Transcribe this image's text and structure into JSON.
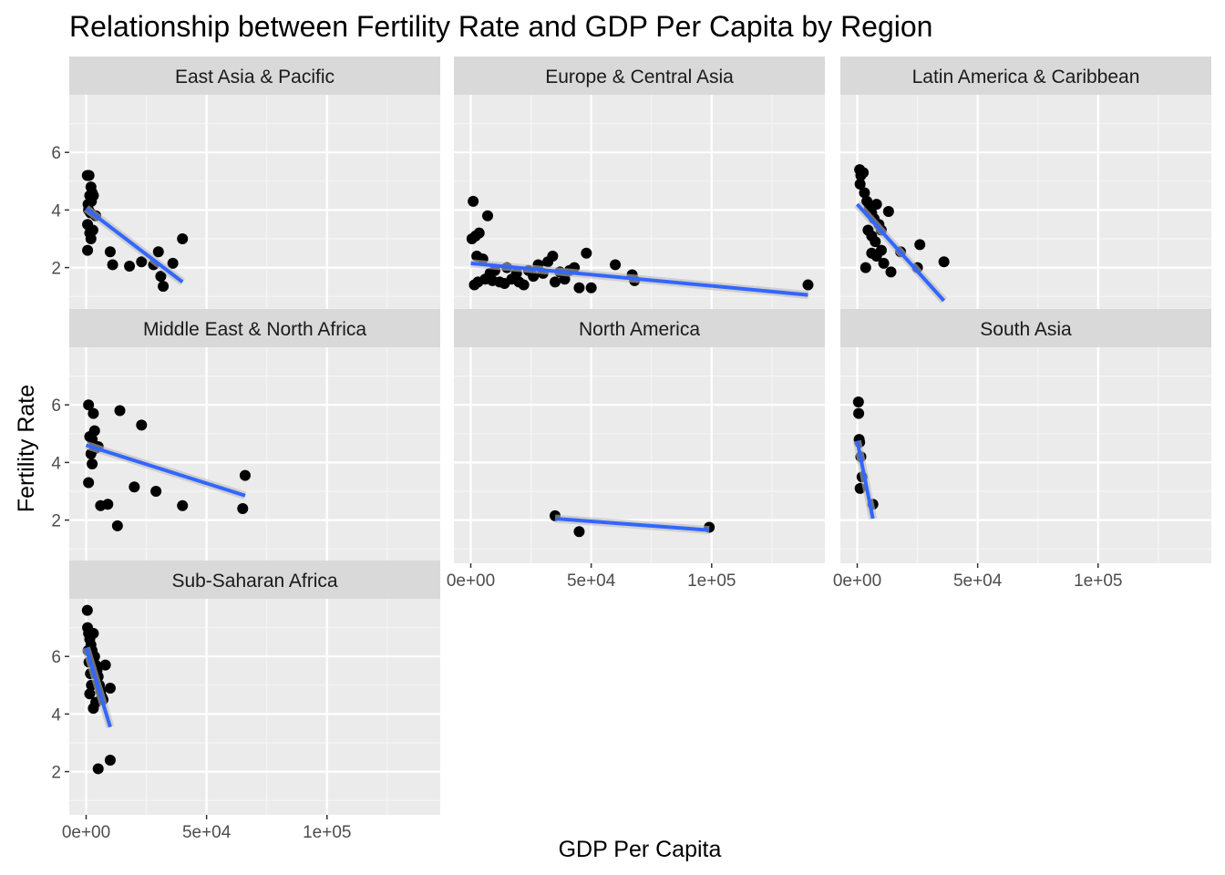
{
  "chart_data": {
    "type": "scatter",
    "title": "Relationship between Fertility Rate and GDP Per Capita by Region",
    "xlabel": "GDP Per Capita",
    "ylabel": "Fertility Rate",
    "xlim": [
      -7000,
      147000
    ],
    "ylim": [
      0.5,
      8.0
    ],
    "x_ticks": [
      0,
      50000,
      100000
    ],
    "x_tick_labels": [
      "0e+00",
      "5e+04",
      "1e+05"
    ],
    "y_ticks": [
      2,
      4,
      6
    ],
    "y_tick_labels": [
      "2",
      "4",
      "6"
    ],
    "grid": true,
    "point_color": "#000000",
    "fit_color": "#3366FF",
    "panel_bg": "#EBEBEB",
    "strip_bg": "#D9D9D9",
    "panels": [
      {
        "name": "East Asia & Pacific",
        "points": [
          [
            500,
            5.2
          ],
          [
            1200,
            5.2
          ],
          [
            2000,
            4.8
          ],
          [
            1500,
            4.5
          ],
          [
            2500,
            4.6
          ],
          [
            800,
            4.2
          ],
          [
            3000,
            4.5
          ],
          [
            1000,
            4.0
          ],
          [
            2200,
            4.3
          ],
          [
            1800,
            3.9
          ],
          [
            4000,
            3.8
          ],
          [
            600,
            3.5
          ],
          [
            1500,
            3.2
          ],
          [
            2800,
            3.3
          ],
          [
            2000,
            3.0
          ],
          [
            600,
            2.6
          ],
          [
            10000,
            2.55
          ],
          [
            11000,
            2.1
          ],
          [
            18000,
            2.05
          ],
          [
            23000,
            2.2
          ],
          [
            28000,
            2.1
          ],
          [
            30000,
            2.55
          ],
          [
            31000,
            1.7
          ],
          [
            32000,
            1.35
          ],
          [
            36000,
            2.15
          ],
          [
            40000,
            3.0
          ]
        ],
        "fit": [
          [
            0,
            4.05
          ],
          [
            40000,
            1.5
          ]
        ]
      },
      {
        "name": "Europe & Central Asia",
        "points": [
          [
            1000,
            4.3
          ],
          [
            500,
            3.0
          ],
          [
            2000,
            3.1
          ],
          [
            3500,
            3.2
          ],
          [
            7000,
            3.8
          ],
          [
            2500,
            2.4
          ],
          [
            1500,
            1.4
          ],
          [
            3000,
            1.5
          ],
          [
            5000,
            2.3
          ],
          [
            6000,
            1.6
          ],
          [
            8000,
            1.8
          ],
          [
            9000,
            1.55
          ],
          [
            10000,
            1.9
          ],
          [
            12000,
            1.5
          ],
          [
            14000,
            1.45
          ],
          [
            15000,
            2.0
          ],
          [
            17000,
            1.6
          ],
          [
            19000,
            1.8
          ],
          [
            20000,
            1.5
          ],
          [
            22000,
            1.4
          ],
          [
            24000,
            1.9
          ],
          [
            26000,
            1.7
          ],
          [
            28000,
            2.1
          ],
          [
            30000,
            1.8
          ],
          [
            32000,
            2.2
          ],
          [
            34000,
            2.4
          ],
          [
            35000,
            1.5
          ],
          [
            37000,
            1.85
          ],
          [
            39000,
            1.6
          ],
          [
            41000,
            1.9
          ],
          [
            43000,
            2.0
          ],
          [
            45000,
            1.3
          ],
          [
            48000,
            2.5
          ],
          [
            50000,
            1.3
          ],
          [
            60000,
            2.1
          ],
          [
            68000,
            1.55
          ],
          [
            67000,
            1.75
          ],
          [
            140000,
            1.4
          ]
        ],
        "fit": [
          [
            0,
            2.15
          ],
          [
            140000,
            1.05
          ]
        ]
      },
      {
        "name": "Latin America & Caribbean",
        "points": [
          [
            1000,
            5.4
          ],
          [
            1500,
            5.2
          ],
          [
            2500,
            5.3
          ],
          [
            1200,
            4.9
          ],
          [
            3000,
            4.6
          ],
          [
            4000,
            4.3
          ],
          [
            5000,
            4.1
          ],
          [
            6000,
            3.9
          ],
          [
            7000,
            3.7
          ],
          [
            8000,
            4.2
          ],
          [
            9000,
            3.5
          ],
          [
            10000,
            3.3
          ],
          [
            4500,
            3.3
          ],
          [
            6000,
            3.1
          ],
          [
            7500,
            2.9
          ],
          [
            3500,
            2.0
          ],
          [
            6000,
            2.5
          ],
          [
            8000,
            2.4
          ],
          [
            10000,
            2.6
          ],
          [
            11000,
            2.15
          ],
          [
            14000,
            1.85
          ],
          [
            13000,
            3.95
          ],
          [
            18000,
            2.55
          ],
          [
            25000,
            2.0
          ],
          [
            26000,
            2.8
          ],
          [
            36000,
            2.2
          ]
        ],
        "fit": [
          [
            0,
            4.2
          ],
          [
            36000,
            0.85
          ]
        ]
      },
      {
        "name": "Middle East & North Africa",
        "points": [
          [
            1000,
            6.0
          ],
          [
            3000,
            5.7
          ],
          [
            3500,
            5.1
          ],
          [
            2500,
            4.8
          ],
          [
            1500,
            4.9
          ],
          [
            4000,
            4.5
          ],
          [
            5000,
            4.55
          ],
          [
            2000,
            4.3
          ],
          [
            2500,
            3.95
          ],
          [
            1000,
            3.3
          ],
          [
            6000,
            2.5
          ],
          [
            9000,
            2.55
          ],
          [
            13000,
            1.8
          ],
          [
            14000,
            5.8
          ],
          [
            20000,
            3.15
          ],
          [
            23000,
            5.3
          ],
          [
            29000,
            3.0
          ],
          [
            40000,
            2.5
          ],
          [
            65000,
            2.4
          ],
          [
            66000,
            3.55
          ]
        ],
        "fit": [
          [
            0,
            4.6
          ],
          [
            66000,
            2.85
          ]
        ]
      },
      {
        "name": "North America",
        "points": [
          [
            35000,
            2.15
          ],
          [
            45000,
            1.6
          ],
          [
            99000,
            1.75
          ]
        ],
        "fit": [
          [
            35000,
            2.05
          ],
          [
            99000,
            1.65
          ]
        ]
      },
      {
        "name": "South Asia",
        "points": [
          [
            500,
            6.1
          ],
          [
            600,
            5.7
          ],
          [
            800,
            4.8
          ],
          [
            1000,
            4.7
          ],
          [
            1500,
            4.2
          ],
          [
            2000,
            3.5
          ],
          [
            1200,
            3.1
          ],
          [
            6500,
            2.55
          ]
        ],
        "fit": [
          [
            0,
            4.75
          ],
          [
            6500,
            2.05
          ]
        ]
      },
      {
        "name": "Sub-Saharan Africa",
        "points": [
          [
            500,
            7.6
          ],
          [
            600,
            7.0
          ],
          [
            1000,
            6.8
          ],
          [
            1500,
            6.6
          ],
          [
            2000,
            6.4
          ],
          [
            2500,
            6.2
          ],
          [
            3000,
            6.8
          ],
          [
            3500,
            6.0
          ],
          [
            4000,
            5.7
          ],
          [
            4500,
            5.5
          ],
          [
            5000,
            5.3
          ],
          [
            5500,
            5.0
          ],
          [
            6000,
            4.8
          ],
          [
            6500,
            4.6
          ],
          [
            7000,
            4.5
          ],
          [
            800,
            6.2
          ],
          [
            1200,
            5.8
          ],
          [
            1800,
            5.4
          ],
          [
            2200,
            5.0
          ],
          [
            1500,
            4.7
          ],
          [
            3000,
            4.2
          ],
          [
            4000,
            4.4
          ],
          [
            8000,
            5.7
          ],
          [
            10000,
            4.9
          ],
          [
            5000,
            2.1
          ],
          [
            10000,
            2.4
          ]
        ],
        "fit": [
          [
            0,
            6.3
          ],
          [
            10000,
            3.55
          ]
        ]
      }
    ]
  }
}
